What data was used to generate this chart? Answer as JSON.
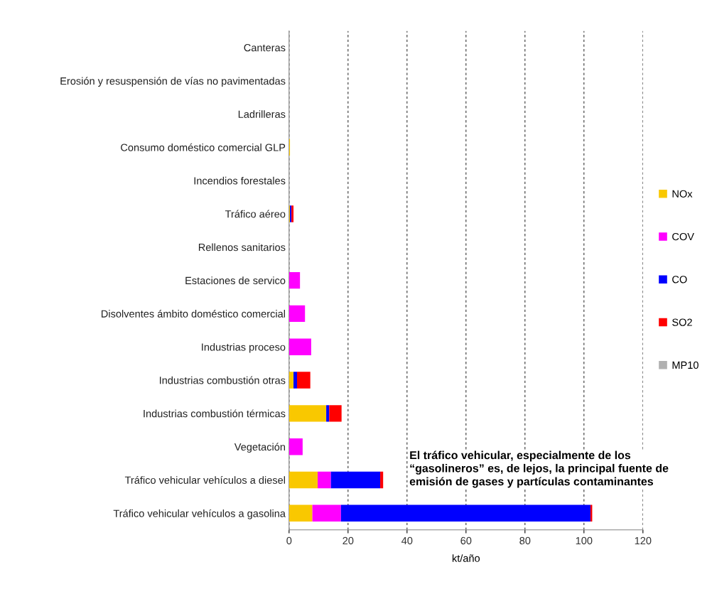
{
  "chart_data": {
    "type": "bar",
    "orientation": "horizontal",
    "stacked": true,
    "xlabel": "kt/año",
    "categories": [
      "Canteras",
      "Erosión y resuspensión de vías no pavimentadas",
      "Ladrilleras",
      "Consumo doméstico comercial GLP",
      "Incendios forestales",
      "Tráfico aéreo",
      "Rellenos sanitarios",
      "Estaciones de servico",
      "Disolventes ámbito doméstico comercial",
      "Industrias proceso",
      "Industrias combustión otras",
      "Industrias combustión térmicas",
      "Vegetación",
      "Tráfico vehicular vehículos a diesel",
      "Tráfico vehicular vehículos a gasolina"
    ],
    "series": [
      {
        "name": "NOx",
        "color": "#f9c800",
        "values": [
          0,
          0,
          0,
          0.3,
          0,
          0.3,
          0,
          0,
          0,
          0,
          1.5,
          12.6,
          0,
          9.7,
          7.9
        ]
      },
      {
        "name": "COV",
        "color": "#ff00ff",
        "values": [
          0,
          0,
          0,
          0,
          0,
          0,
          0,
          3.7,
          5.4,
          7.5,
          0,
          0,
          4.6,
          4.5,
          9.7
        ]
      },
      {
        "name": "CO",
        "color": "#0000ff",
        "values": [
          0,
          0,
          0,
          0,
          0,
          0.5,
          0,
          0,
          0,
          0,
          1.2,
          1.0,
          0,
          16.7,
          84.6
        ]
      },
      {
        "name": "SO2",
        "color": "#ff0000",
        "values": [
          0,
          0,
          0,
          0,
          0,
          0.7,
          0,
          0,
          0,
          0,
          4.5,
          4.2,
          0,
          1.0,
          0.6
        ]
      },
      {
        "name": "MP10",
        "color": "#b0b0b0",
        "values": [
          0,
          0,
          0,
          0,
          0,
          0,
          0,
          0,
          0,
          0,
          0,
          0,
          0,
          0,
          0
        ]
      }
    ],
    "xlim": [
      0,
      120
    ],
    "xticks": [
      0,
      20,
      40,
      60,
      80,
      100,
      120
    ],
    "grid": "x",
    "legend": "right",
    "annotations": [
      "El tráfico vehicular, especialmente de los\n“gasolineros” es, de lejos, la principal fuente de\nemisión de gases y partículas contaminantes"
    ]
  }
}
